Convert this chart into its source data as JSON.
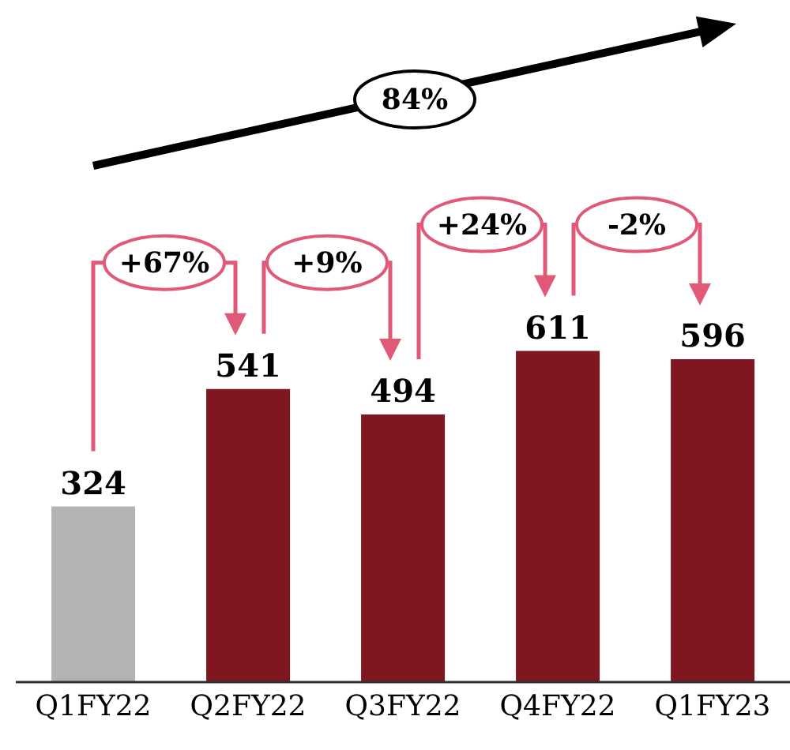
{
  "chart_data": {
    "type": "bar",
    "categories": [
      "Q1FY22",
      "Q2FY22",
      "Q3FY22",
      "Q4FY22",
      "Q1FY23"
    ],
    "values": [
      324,
      541,
      494,
      611,
      596
    ],
    "colors": [
      "#b3b3b3",
      "#7f1620",
      "#7f1620",
      "#7f1620",
      "#7f1620"
    ],
    "data_labels": true,
    "annotations": [
      "84%",
      "+67%",
      "+9%",
      "+24%",
      "-2%"
    ]
  }
}
